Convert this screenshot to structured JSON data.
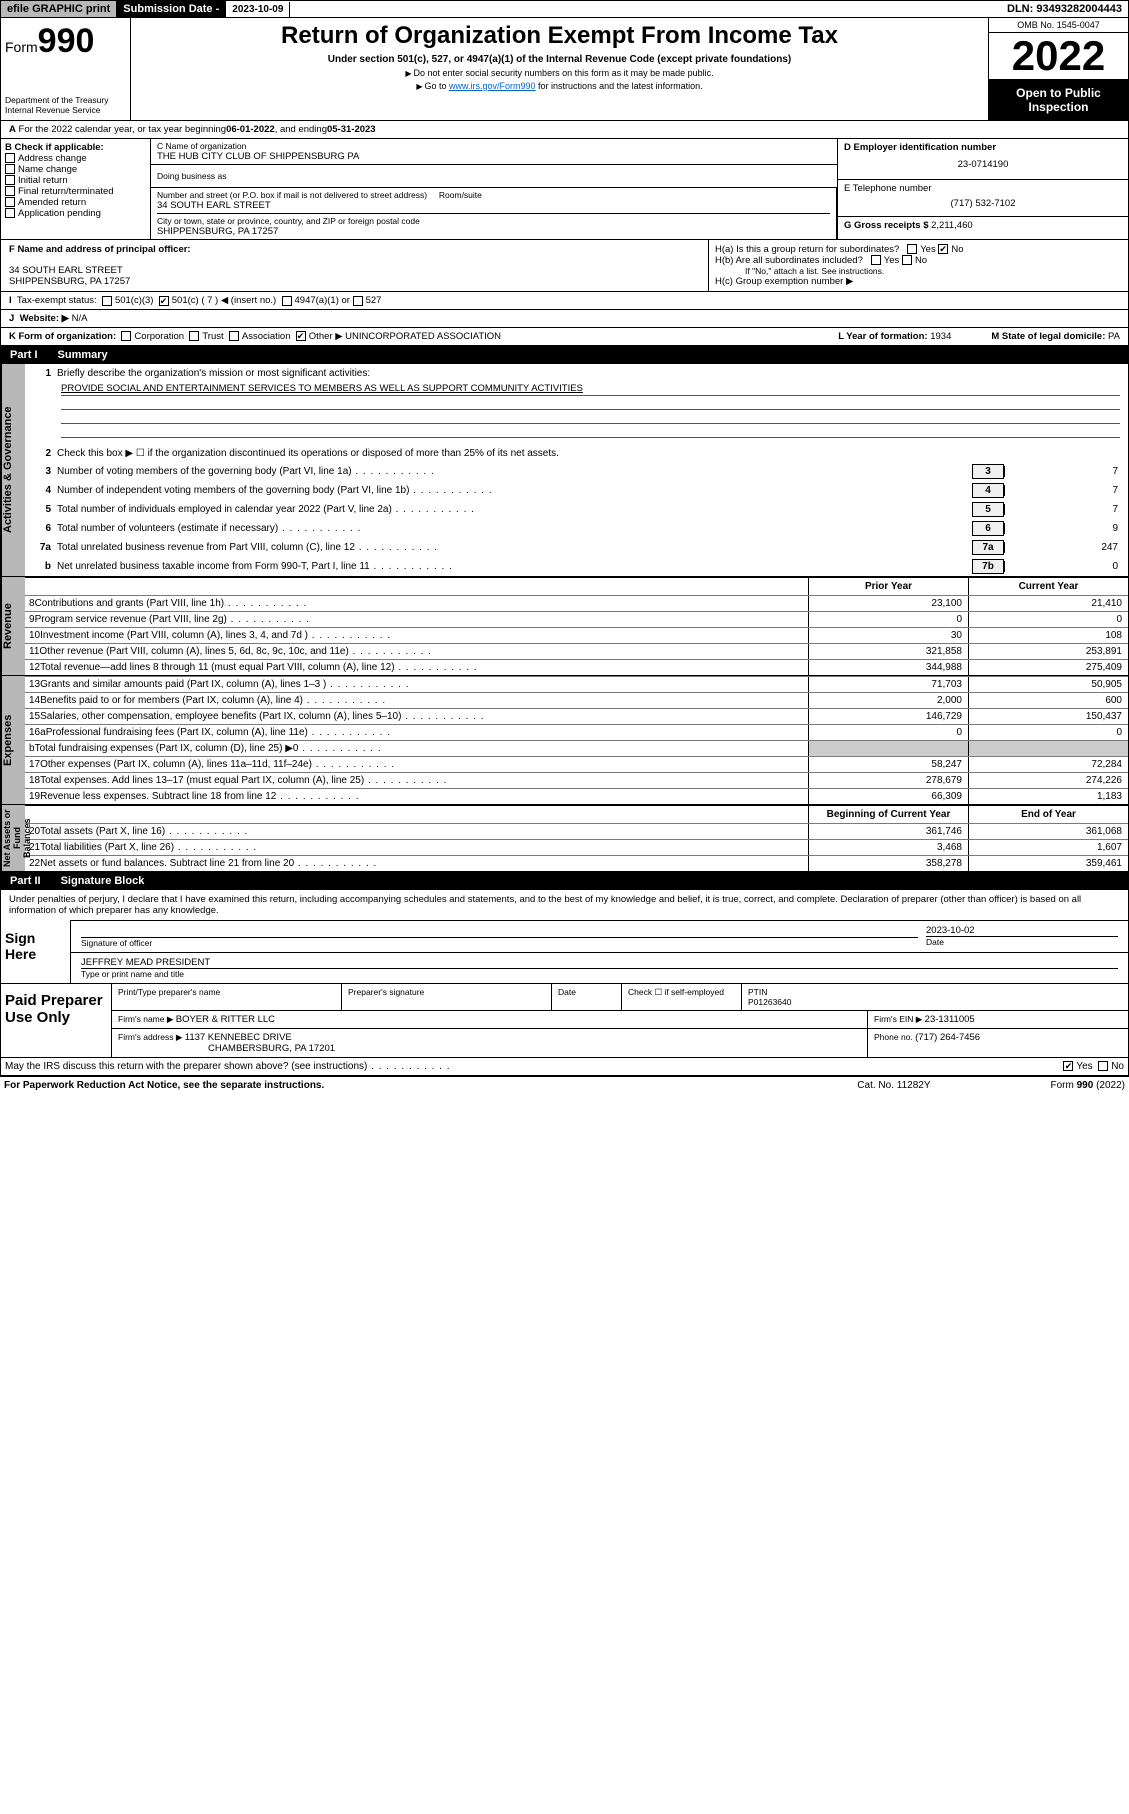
{
  "topbar": {
    "efile": "efile GRAPHIC print",
    "subm_lbl": "Submission Date - ",
    "subm_date": "2023-10-09",
    "dln": "DLN: 93493282004443"
  },
  "hdr": {
    "form_word": "Form",
    "form_num": "990",
    "dept": "Department of the Treasury Internal Revenue Service",
    "title": "Return of Organization Exempt From Income Tax",
    "sub": "Under section 501(c), 527, or 4947(a)(1) of the Internal Revenue Code (except private foundations)",
    "note1": "Do not enter social security numbers on this form as it may be made public.",
    "note2_a": "Go to ",
    "note2_link": "www.irs.gov/Form990",
    "note2_b": " for instructions and the latest information.",
    "omb": "OMB No. 1545-0047",
    "year": "2022",
    "open": "Open to Public Inspection"
  },
  "a": {
    "text": "For the 2022 calendar year, or tax year beginning ",
    "begin": "06-01-2022",
    "mid": " , and ending ",
    "end": "05-31-2023"
  },
  "b": {
    "lbl": "B Check if applicable:",
    "opts": [
      "Address change",
      "Name change",
      "Initial return",
      "Final return/terminated",
      "Amended return",
      "Application pending"
    ]
  },
  "c": {
    "lbl": "C Name of organization",
    "name": "THE HUB CITY CLUB OF SHIPPENSBURG PA",
    "dba_lbl": "Doing business as",
    "addr_lbl": "Number and street (or P.O. box if mail is not delivered to street address)",
    "room_lbl": "Room/suite",
    "addr": "34 SOUTH EARL STREET",
    "city_lbl": "City or town, state or province, country, and ZIP or foreign postal code",
    "city": "SHIPPENSBURG, PA  17257"
  },
  "d": {
    "lbl": "D Employer identification number",
    "val": "23-0714190"
  },
  "e": {
    "lbl": "E Telephone number",
    "val": "(717) 532-7102"
  },
  "g": {
    "lbl": "G Gross receipts $ ",
    "val": "2,211,460"
  },
  "f": {
    "lbl": "F  Name and address of principal officer:",
    "l1": "34 SOUTH EARL STREET",
    "l2": "SHIPPENSBURG, PA  17257"
  },
  "h": {
    "a": "H(a)  Is this a group return for subordinates?",
    "b": "H(b)  Are all subordinates included?",
    "b_note": "If \"No,\" attach a list. See instructions.",
    "c": "H(c)  Group exemption number ▶",
    "yes": "Yes",
    "no": "No"
  },
  "i": {
    "lbl": "Tax-exempt status:",
    "o1": "501(c)(3)",
    "o2": "501(c) ( 7 ) ◀ (insert no.)",
    "o3": "4947(a)(1) or",
    "o4": "527"
  },
  "j": {
    "lbl": "Website: ▶",
    "val": "N/A"
  },
  "k": {
    "lbl": "K Form of organization:",
    "o1": "Corporation",
    "o2": "Trust",
    "o3": "Association",
    "o4": "Other ▶",
    "other": "UNINCORPORATED ASSOCIATION",
    "l_lbl": "L Year of formation: ",
    "l_val": "1934",
    "m_lbl": "M State of legal domicile: ",
    "m_val": "PA"
  },
  "p1": {
    "lbl": "Part I",
    "title": "Summary"
  },
  "tabs": {
    "ag": "Activities & Governance",
    "rev": "Revenue",
    "exp": "Expenses",
    "na": "Net Assets or Fund Balances"
  },
  "l1": {
    "txt": "Briefly describe the organization's mission or most significant activities:",
    "mission": "PROVIDE SOCIAL AND ENTERTAINMENT SERVICES TO MEMBERS AS WELL AS SUPPORT COMMUNITY ACTIVITIES"
  },
  "l2": "Check this box ▶ ☐  if the organization discontinued its operations or disposed of more than 25% of its net assets.",
  "lines_nv": [
    {
      "n": "3",
      "t": "Number of voting members of the governing body (Part VI, line 1a)",
      "b": "3",
      "v": "7"
    },
    {
      "n": "4",
      "t": "Number of independent voting members of the governing body (Part VI, line 1b)",
      "b": "4",
      "v": "7"
    },
    {
      "n": "5",
      "t": "Total number of individuals employed in calendar year 2022 (Part V, line 2a)",
      "b": "5",
      "v": "7"
    },
    {
      "n": "6",
      "t": "Total number of volunteers (estimate if necessary)",
      "b": "6",
      "v": "9"
    },
    {
      "n": "7a",
      "t": "Total unrelated business revenue from Part VIII, column (C), line 12",
      "b": "7a",
      "v": "247"
    },
    {
      "n": "b",
      "t": "Net unrelated business taxable income from Form 990-T, Part I, line 11",
      "b": "7b",
      "v": "0"
    }
  ],
  "cols2": {
    "py": "Prior Year",
    "cy": "Current Year",
    "boc": "Beginning of Current Year",
    "eoy": "End of Year"
  },
  "rev": [
    {
      "n": "8",
      "t": "Contributions and grants (Part VIII, line 1h)",
      "p": "23,100",
      "c": "21,410"
    },
    {
      "n": "9",
      "t": "Program service revenue (Part VIII, line 2g)",
      "p": "0",
      "c": "0"
    },
    {
      "n": "10",
      "t": "Investment income (Part VIII, column (A), lines 3, 4, and 7d )",
      "p": "30",
      "c": "108"
    },
    {
      "n": "11",
      "t": "Other revenue (Part VIII, column (A), lines 5, 6d, 8c, 9c, 10c, and 11e)",
      "p": "321,858",
      "c": "253,891"
    },
    {
      "n": "12",
      "t": "Total revenue—add lines 8 through 11 (must equal Part VIII, column (A), line 12)",
      "p": "344,988",
      "c": "275,409"
    }
  ],
  "exp": [
    {
      "n": "13",
      "t": "Grants and similar amounts paid (Part IX, column (A), lines 1–3 )",
      "p": "71,703",
      "c": "50,905"
    },
    {
      "n": "14",
      "t": "Benefits paid to or for members (Part IX, column (A), line 4)",
      "p": "2,000",
      "c": "600"
    },
    {
      "n": "15",
      "t": "Salaries, other compensation, employee benefits (Part IX, column (A), lines 5–10)",
      "p": "146,729",
      "c": "150,437"
    },
    {
      "n": "16a",
      "t": "Professional fundraising fees (Part IX, column (A), line 11e)",
      "p": "0",
      "c": "0"
    },
    {
      "n": "b",
      "t": "Total fundraising expenses (Part IX, column (D), line 25) ▶0",
      "p": "",
      "c": ""
    },
    {
      "n": "17",
      "t": "Other expenses (Part IX, column (A), lines 11a–11d, 11f–24e)",
      "p": "58,247",
      "c": "72,284"
    },
    {
      "n": "18",
      "t": "Total expenses. Add lines 13–17 (must equal Part IX, column (A), line 25)",
      "p": "278,679",
      "c": "274,226"
    },
    {
      "n": "19",
      "t": "Revenue less expenses. Subtract line 18 from line 12",
      "p": "66,309",
      "c": "1,183"
    }
  ],
  "na": [
    {
      "n": "20",
      "t": "Total assets (Part X, line 16)",
      "p": "361,746",
      "c": "361,068"
    },
    {
      "n": "21",
      "t": "Total liabilities (Part X, line 26)",
      "p": "3,468",
      "c": "1,607"
    },
    {
      "n": "22",
      "t": "Net assets or fund balances. Subtract line 21 from line 20",
      "p": "358,278",
      "c": "359,461"
    }
  ],
  "p2": {
    "lbl": "Part II",
    "title": "Signature Block"
  },
  "sig": {
    "decl": "Under penalties of perjury, I declare that I have examined this return, including accompanying schedules and statements, and to the best of my knowledge and belief, it is true, correct, and complete. Declaration of preparer (other than officer) is based on all information of which preparer has any knowledge.",
    "here": "Sign Here",
    "sig_lbl": "Signature of officer",
    "date_lbl": "Date",
    "date": "2023-10-02",
    "name": "JEFFREY MEAD  PRESIDENT",
    "name_lbl": "Type or print name and title"
  },
  "paid": {
    "lbl": "Paid Preparer Use Only",
    "h": [
      "Print/Type preparer's name",
      "Preparer's signature",
      "Date"
    ],
    "check": "Check ☐ if self-employed",
    "ptin_lbl": "PTIN",
    "ptin": "P01263640",
    "firm_lbl": "Firm's name   ▶ ",
    "firm": "BOYER & RITTER LLC",
    "ein_lbl": "Firm's EIN ▶ ",
    "ein": "23-1311005",
    "addr_lbl": "Firm's address ▶ ",
    "addr1": "1137 KENNEBEC DRIVE",
    "addr2": "CHAMBERSBURG, PA  17201",
    "phone_lbl": "Phone no. ",
    "phone": "(717) 264-7456"
  },
  "may": "May the IRS discuss this return with the preparer shown above? (see instructions)",
  "foot": {
    "pra": "For Paperwork Reduction Act Notice, see the separate instructions.",
    "cat": "Cat. No. 11282Y",
    "form": "Form 990 (2022)"
  }
}
